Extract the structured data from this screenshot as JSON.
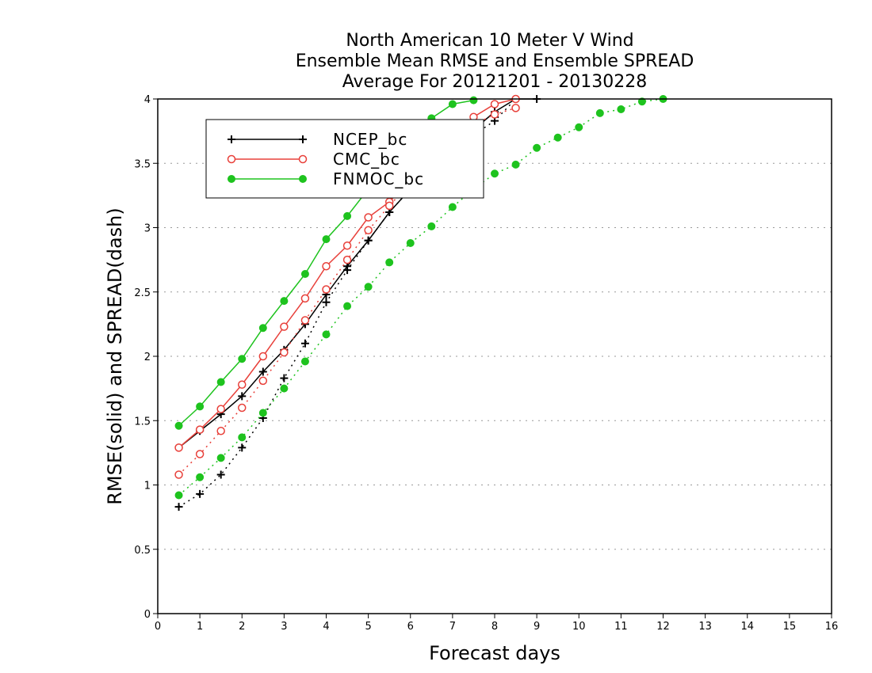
{
  "chart_data": {
    "type": "line",
    "title_lines": [
      "North American 10 Meter V Wind",
      "Ensemble Mean RMSE and Ensemble SPREAD",
      "Average For 20121201 - 20130228"
    ],
    "xlabel": "Forecast days",
    "ylabel": "RMSE(solid) and SPREAD(dash)",
    "xlim": [
      0,
      16
    ],
    "ylim": [
      0,
      4
    ],
    "x_ticks": [
      "0",
      "1",
      "2",
      "3",
      "4",
      "5",
      "6",
      "7",
      "8",
      "9",
      "10",
      "11",
      "12",
      "13",
      "14",
      "15",
      "16"
    ],
    "y_ticks": [
      "0",
      "0.5",
      "1",
      "1.5",
      "2",
      "2.5",
      "3",
      "3.5",
      "4"
    ],
    "grid": "horizontal dotted",
    "legend_position": "top-left",
    "series": [
      {
        "name": "NCEP_bc",
        "color": "#000000",
        "marker": "plus",
        "rmse": {
          "x": [
            0.5,
            1,
            1.5,
            2,
            2.5,
            3,
            3.5,
            4,
            4.5,
            5,
            5.5,
            6,
            6.5,
            7,
            7.5,
            8,
            8.5,
            9
          ],
          "y": [
            1.29,
            1.42,
            1.55,
            1.69,
            1.88,
            2.05,
            2.25,
            2.48,
            2.7,
            2.9,
            3.12,
            3.3,
            3.48,
            3.62,
            3.76,
            3.9,
            4.0,
            4.0
          ]
        },
        "spread": {
          "x": [
            0.5,
            1,
            1.5,
            2,
            2.5,
            3,
            3.5,
            4,
            4.5,
            5,
            5.5,
            6,
            6.5,
            7,
            7.5,
            8,
            8.5
          ],
          "y": [
            0.83,
            0.93,
            1.08,
            1.29,
            1.52,
            1.83,
            2.1,
            2.42,
            2.67,
            2.9,
            3.12,
            3.3,
            3.48,
            3.6,
            3.72,
            3.83,
            4.0
          ]
        }
      },
      {
        "name": "CMC_bc",
        "color": "#e8403a",
        "marker": "open-circle",
        "rmse": {
          "x": [
            0.5,
            1,
            1.5,
            2,
            2.5,
            3,
            3.5,
            4,
            4.5,
            5,
            5.5,
            6,
            6.5,
            7,
            7.5,
            8,
            8.5
          ],
          "y": [
            1.29,
            1.43,
            1.59,
            1.78,
            2.0,
            2.23,
            2.45,
            2.7,
            2.86,
            3.08,
            3.2,
            3.38,
            3.55,
            3.7,
            3.86,
            3.96,
            4.0
          ]
        },
        "spread": {
          "x": [
            0.5,
            1,
            1.5,
            2,
            2.5,
            3,
            3.5,
            4,
            4.5,
            5,
            5.5,
            6,
            6.5,
            7,
            7.5,
            8,
            8.5
          ],
          "y": [
            1.08,
            1.24,
            1.42,
            1.6,
            1.81,
            2.03,
            2.28,
            2.52,
            2.75,
            2.98,
            3.17,
            3.35,
            3.52,
            3.68,
            3.8,
            3.88,
            3.93
          ]
        }
      },
      {
        "name": "FNMOC_bc",
        "color": "#1ec31e",
        "marker": "filled-circle",
        "rmse": {
          "x": [
            0.5,
            1,
            1.5,
            2,
            2.5,
            3,
            3.5,
            4,
            4.5,
            5,
            5.5,
            6,
            6.5,
            7,
            7.5
          ],
          "y": [
            1.46,
            1.61,
            1.8,
            1.98,
            2.22,
            2.43,
            2.64,
            2.91,
            3.09,
            3.3,
            3.5,
            3.7,
            3.85,
            3.96,
            3.99
          ]
        },
        "spread": {
          "x": [
            0.5,
            1,
            1.5,
            2,
            2.5,
            3,
            3.5,
            4,
            4.5,
            5,
            5.5,
            6,
            6.5,
            7,
            7.5,
            8,
            8.5,
            9,
            9.5,
            10,
            10.5,
            11,
            11.5,
            12
          ],
          "y": [
            0.92,
            1.06,
            1.21,
            1.37,
            1.56,
            1.75,
            1.96,
            2.17,
            2.39,
            2.54,
            2.73,
            2.88,
            3.01,
            3.16,
            3.3,
            3.42,
            3.49,
            3.62,
            3.7,
            3.78,
            3.89,
            3.92,
            3.98,
            4.0
          ]
        }
      }
    ]
  }
}
